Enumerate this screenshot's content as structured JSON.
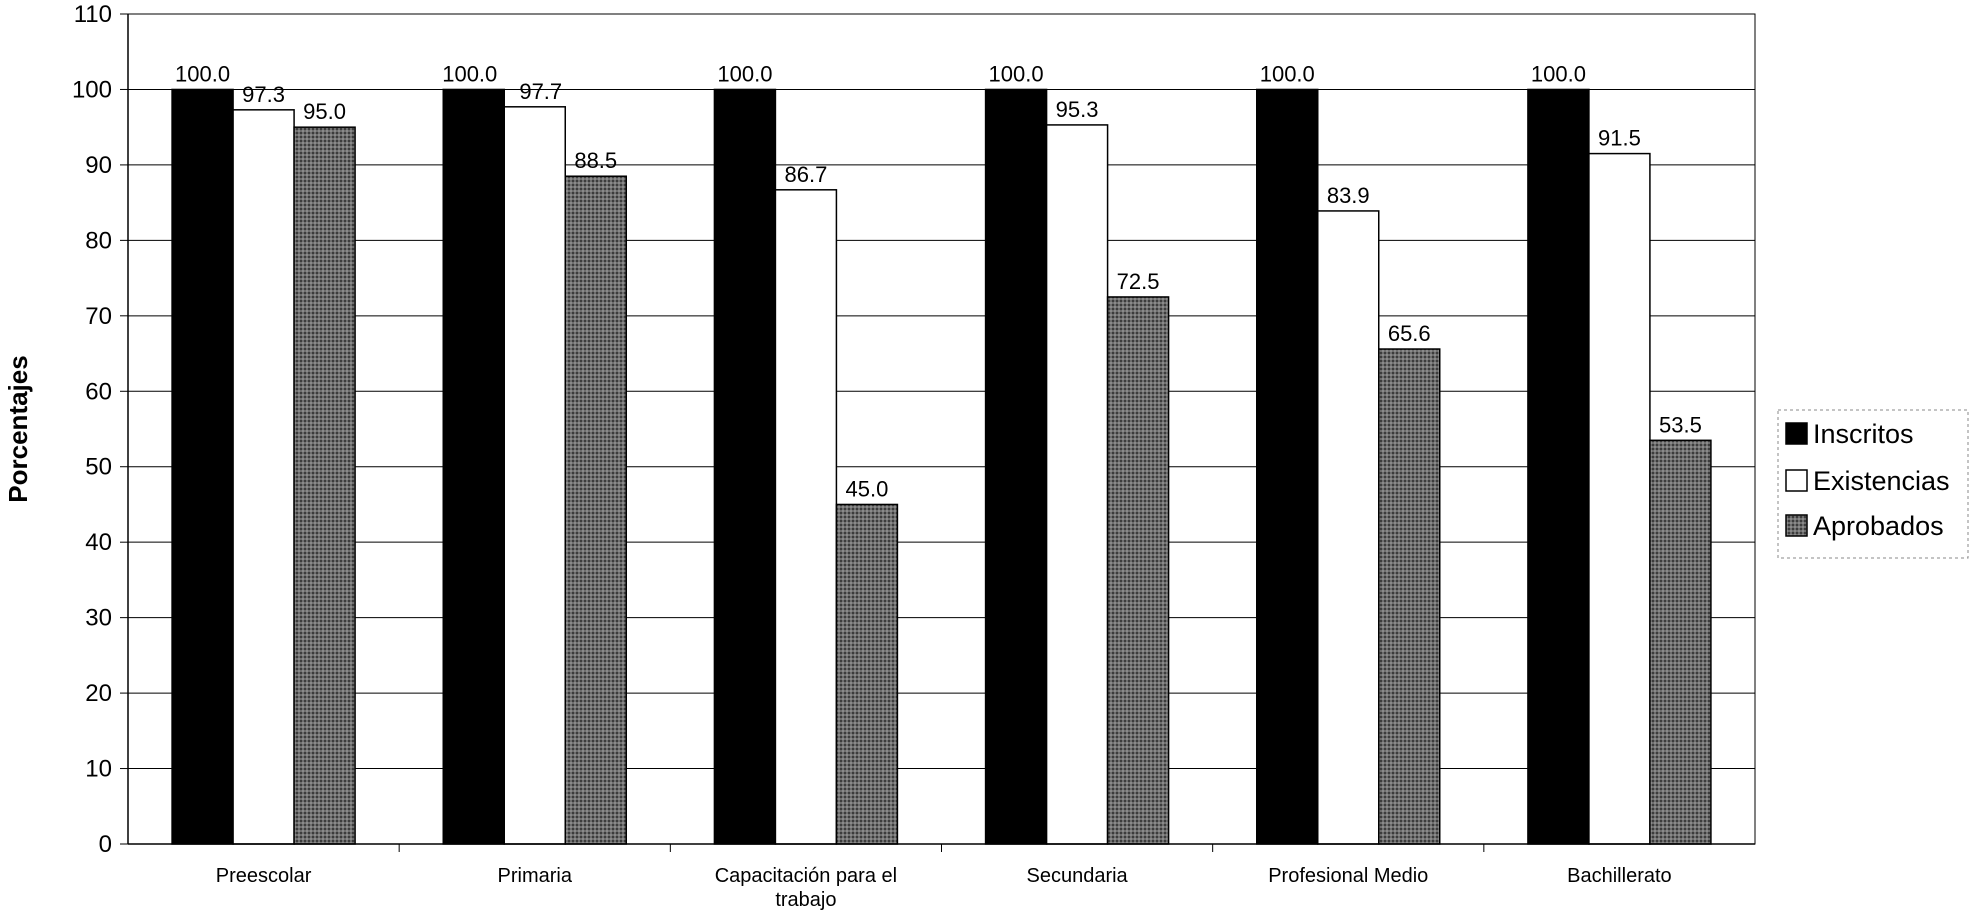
{
  "chart_data": {
    "type": "bar",
    "ylabel": "Porcentajes",
    "ylim": [
      0,
      110
    ],
    "ytick_step": 10,
    "grid": true,
    "legend": "right",
    "categories": [
      "Preescolar",
      "Primaria",
      "Capacitación para el trabajo",
      "Secundaria",
      "Profesional Medio",
      "Bachillerato"
    ],
    "series": [
      {
        "name": "Inscritos",
        "values": [
          100.0,
          100.0,
          100.0,
          100.0,
          100.0,
          100.0
        ],
        "color": "#000000",
        "labels": [
          "100.0",
          "100.0",
          "100.0",
          "100.0",
          "100.0",
          "100.0"
        ]
      },
      {
        "name": "Existencias",
        "values": [
          97.3,
          97.7,
          86.7,
          95.3,
          83.9,
          91.5
        ],
        "color": "#ffffff",
        "labels": [
          "97.3",
          "97.7",
          "86.7",
          "95.3",
          "83.9",
          "91.5"
        ]
      },
      {
        "name": "Aprobados",
        "values": [
          95.0,
          88.5,
          45.0,
          72.5,
          65.6,
          53.5
        ],
        "color": "#5a5a5a",
        "labels": [
          "95.0",
          "88.5",
          "45.0",
          "72.5",
          "65.6",
          "53.5"
        ]
      }
    ]
  }
}
